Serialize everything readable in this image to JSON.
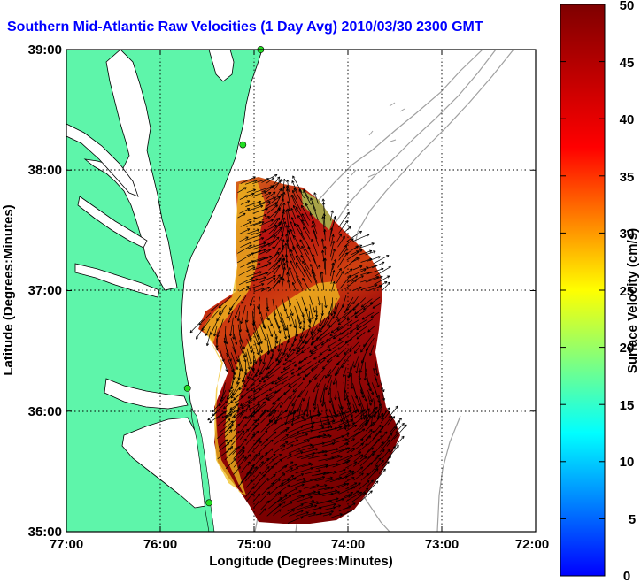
{
  "title": "Southern Mid-Atlantic Raw Velocities (1 Day Avg) 2010/03/30 2300 GMT",
  "map": {
    "xlabel": "Longitude (Degrees:Minutes)",
    "ylabel": "Latitude (Degrees:Minutes)",
    "xticks": [
      "77:00",
      "76:00",
      "75:00",
      "74:00",
      "73:00",
      "72:00"
    ],
    "yticks": [
      "35:00",
      "36:00",
      "37:00",
      "38:00",
      "39:00"
    ],
    "xlim": [
      -77,
      -72
    ],
    "ylim": [
      35,
      39
    ],
    "grid": "dotted",
    "colors": {
      "land": "#5ef5aa",
      "water": "#ffffff",
      "bathymetry": "#a0a0a0",
      "station": "#22dd22",
      "vector": "#000000"
    }
  },
  "colorbar": {
    "label": "Surface Velocity (cm/s)",
    "ticks": [
      "0",
      "5",
      "10",
      "15",
      "20",
      "25",
      "30",
      "35",
      "40",
      "45",
      "50"
    ],
    "range": [
      0,
      50
    ],
    "colormap": "jet"
  },
  "stations": [
    {
      "lon": -74.93,
      "lat": 39.0
    },
    {
      "lon": -75.12,
      "lat": 38.21
    },
    {
      "lon": -75.71,
      "lat": 36.19
    },
    {
      "lon": -75.48,
      "lat": 35.24
    }
  ]
}
